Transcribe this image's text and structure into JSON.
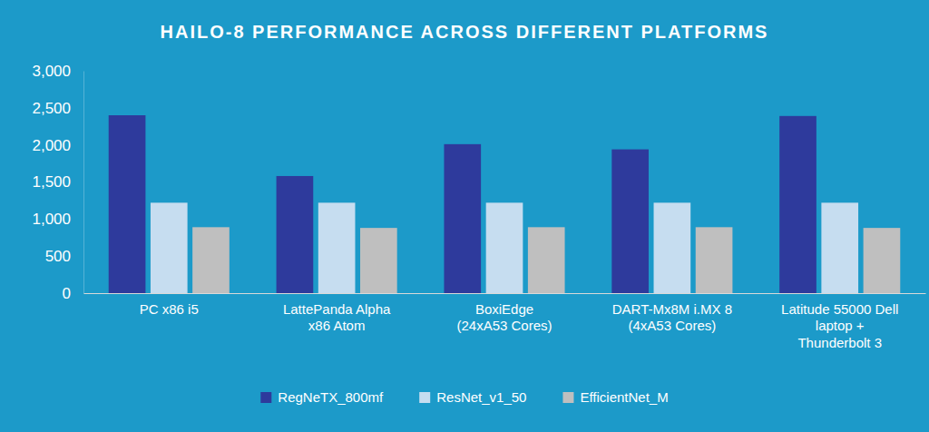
{
  "chart_data": {
    "type": "bar",
    "title": "HAILO-8 PERFORMANCE ACROSS DIFFERENT PLATFORMS",
    "categories": [
      "PC x86 i5",
      "LattePanda Alpha\nx86 Atom",
      "BoxiEdge\n(24xA53 Cores)",
      "DART-Mx8M i.MX 8\n(4xA53 Cores)",
      "Latitude 55000 Dell\nlaptop +\nThunderbolt 3"
    ],
    "series": [
      {
        "name": "RegNeTX_800mf",
        "color": "#2e3a9c",
        "values": [
          2400,
          1580,
          2010,
          1940,
          2390
        ]
      },
      {
        "name": "ResNet_v1_50",
        "color": "#c6ddf0",
        "values": [
          1220,
          1220,
          1220,
          1220,
          1220
        ]
      },
      {
        "name": "EfficientNet_M",
        "color": "#bfbfbf",
        "values": [
          890,
          880,
          890,
          890,
          880
        ]
      }
    ],
    "ylim": [
      0,
      3000
    ],
    "yticks": [
      0,
      500,
      {
        "value": 1000,
        "label": "1,000"
      },
      {
        "value": 1500,
        "label": "1,500"
      },
      {
        "value": 2000,
        "label": "2,000"
      },
      {
        "value": 2500,
        "label": "2,500"
      },
      {
        "value": 3000,
        "label": "3,000"
      }
    ],
    "grid": false,
    "legend": "bottom"
  }
}
